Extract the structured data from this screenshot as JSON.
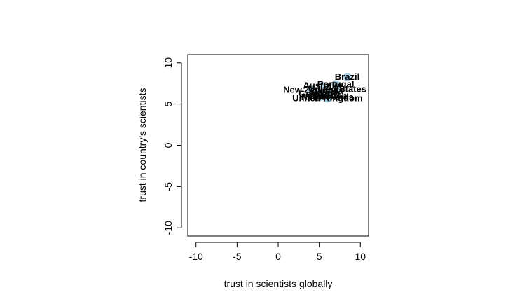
{
  "chart_data": {
    "type": "scatter",
    "title": "",
    "xlabel": "trust in scientists globally",
    "ylabel": "trust in country's scientists",
    "xlim": [
      -11,
      11
    ],
    "ylim": [
      -11,
      11
    ],
    "xticks": [
      -10,
      -5,
      0,
      5,
      10
    ],
    "yticks": [
      -10,
      -5,
      0,
      5,
      10
    ],
    "xtick_labels": [
      "-10",
      "-5",
      "0",
      "5",
      "10"
    ],
    "ytick_labels": [
      "-10",
      "-5",
      "0",
      "5",
      "10"
    ],
    "grid": false,
    "legend": "none",
    "point_color": "#9ecae1",
    "points": [
      {
        "label": "Brazil",
        "x": 8.4,
        "y": 8.3
      },
      {
        "label": "Portugal",
        "x": 7.0,
        "y": 7.4
      },
      {
        "label": "Australia",
        "x": 5.4,
        "y": 7.2
      },
      {
        "label": "United States",
        "x": 7.2,
        "y": 6.8
      },
      {
        "label": "New Zealand",
        "x": 4.0,
        "y": 6.7
      },
      {
        "label": "Canada",
        "x": 5.9,
        "y": 6.6
      },
      {
        "label": "France",
        "x": 5.7,
        "y": 6.1
      },
      {
        "label": "Germany",
        "x": 4.9,
        "y": 6.2
      },
      {
        "label": "Sweden",
        "x": 6.3,
        "y": 6.0
      },
      {
        "label": "Spain",
        "x": 5.2,
        "y": 5.9
      },
      {
        "label": "Netherlands",
        "x": 6.0,
        "y": 5.8
      },
      {
        "label": "United Kingdom",
        "x": 6.0,
        "y": 5.7
      }
    ]
  }
}
